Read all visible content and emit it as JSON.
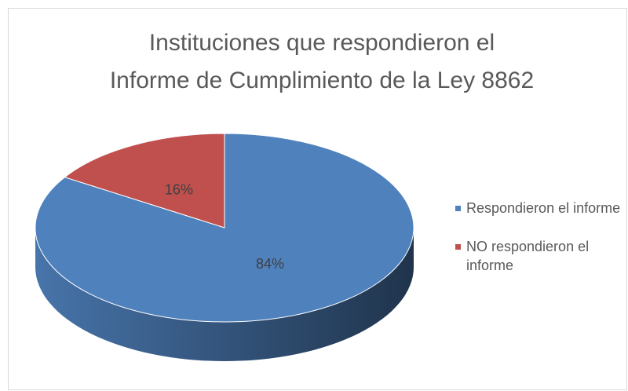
{
  "chart_data": {
    "type": "pie",
    "title": [
      "Instituciones que respondieron el",
      "Informe de Cumplimiento de la Ley 8862"
    ],
    "categories": [
      "Respondieron el informe",
      "NO respondieron el informe"
    ],
    "values": [
      84,
      16
    ],
    "value_labels": [
      "84%",
      "16%"
    ],
    "colors": [
      "#4f81bd",
      "#c0504d"
    ],
    "legend": "right"
  }
}
